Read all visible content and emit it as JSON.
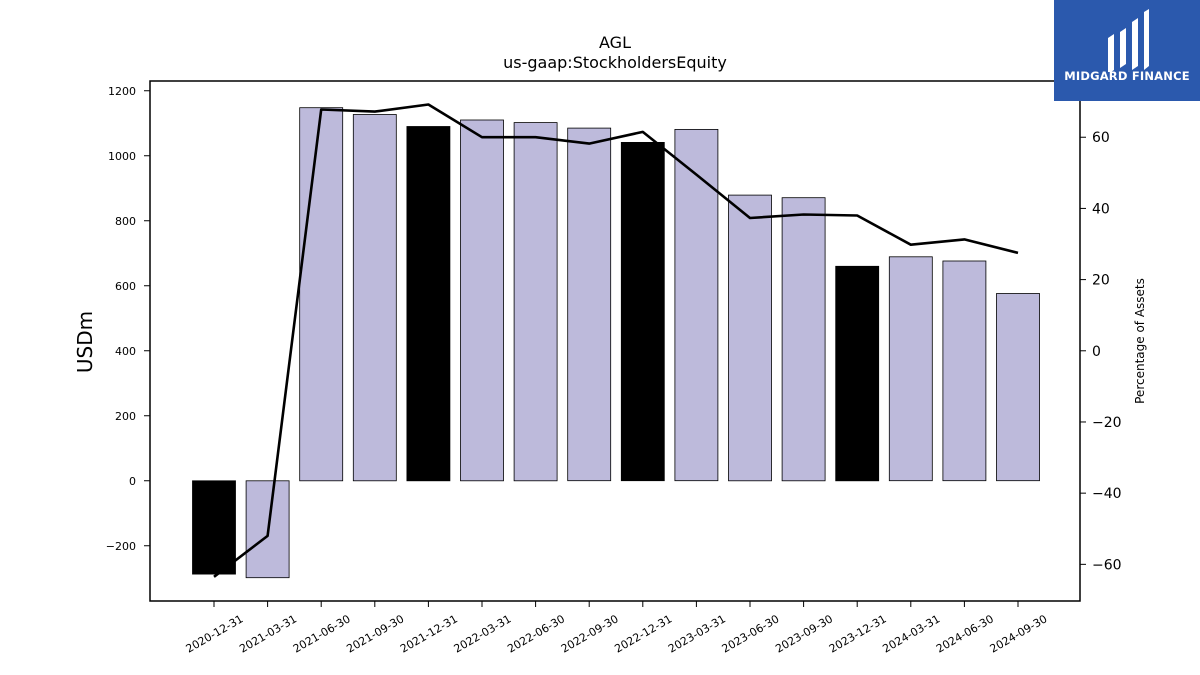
{
  "brand": {
    "name": "MIDGARD FINANCE",
    "bg_color": "#2b59ad",
    "text_color": "#ffffff"
  },
  "chart_data": {
    "type": "bar",
    "title": "AGL",
    "subtitle": "us-gaap:StockholdersEquity",
    "ylabel": "USDm",
    "y2label": "Percentage of Assets",
    "categories": [
      "2020-12-31",
      "2021-03-31",
      "2021-06-30",
      "2021-09-30",
      "2021-12-31",
      "2022-03-31",
      "2022-06-30",
      "2022-09-30",
      "2022-12-31",
      "2023-03-31",
      "2023-06-30",
      "2023-09-30",
      "2023-12-31",
      "2024-03-31",
      "2024-06-30",
      "2024-09-30"
    ],
    "series": [
      {
        "type": "bar",
        "axis": "left",
        "values": [
          -287,
          -298,
          1148,
          1127,
          1090,
          1110,
          1102,
          1085,
          1041,
          1081,
          879,
          871,
          660,
          689,
          676,
          576
        ],
        "colors": [
          "#000000",
          "#bdbadb",
          "#bdbadb",
          "#bdbadb",
          "#000000",
          "#bdbadb",
          "#bdbadb",
          "#bdbadb",
          "#000000",
          "#bdbadb",
          "#bdbadb",
          "#bdbadb",
          "#000000",
          "#bdbadb",
          "#bdbadb",
          "#bdbadb"
        ]
      },
      {
        "type": "line",
        "axis": "right",
        "color": "#000000",
        "values": [
          -63.5,
          -52,
          67.8,
          67.2,
          69.2,
          60,
          60,
          58.2,
          61.5,
          49.5,
          37.3,
          38.3,
          38,
          29.8,
          31.3,
          27.5
        ]
      }
    ],
    "ylim": [
      -370,
      1230
    ],
    "y2lim": [
      -70.3,
      75.8
    ],
    "yticks": [
      -200,
      0,
      200,
      400,
      600,
      800,
      1000,
      1200
    ],
    "y2ticks": [
      -60,
      -40,
      -20,
      0,
      20,
      40,
      60
    ],
    "ytick_labels": [
      "−200",
      "0",
      "200",
      "400",
      "600",
      "800",
      "1000",
      "1200"
    ],
    "y2tick_labels": [
      "−60",
      "−40",
      "−20",
      "0",
      "20",
      "40",
      "60"
    ],
    "grid": false,
    "legend": "none"
  }
}
